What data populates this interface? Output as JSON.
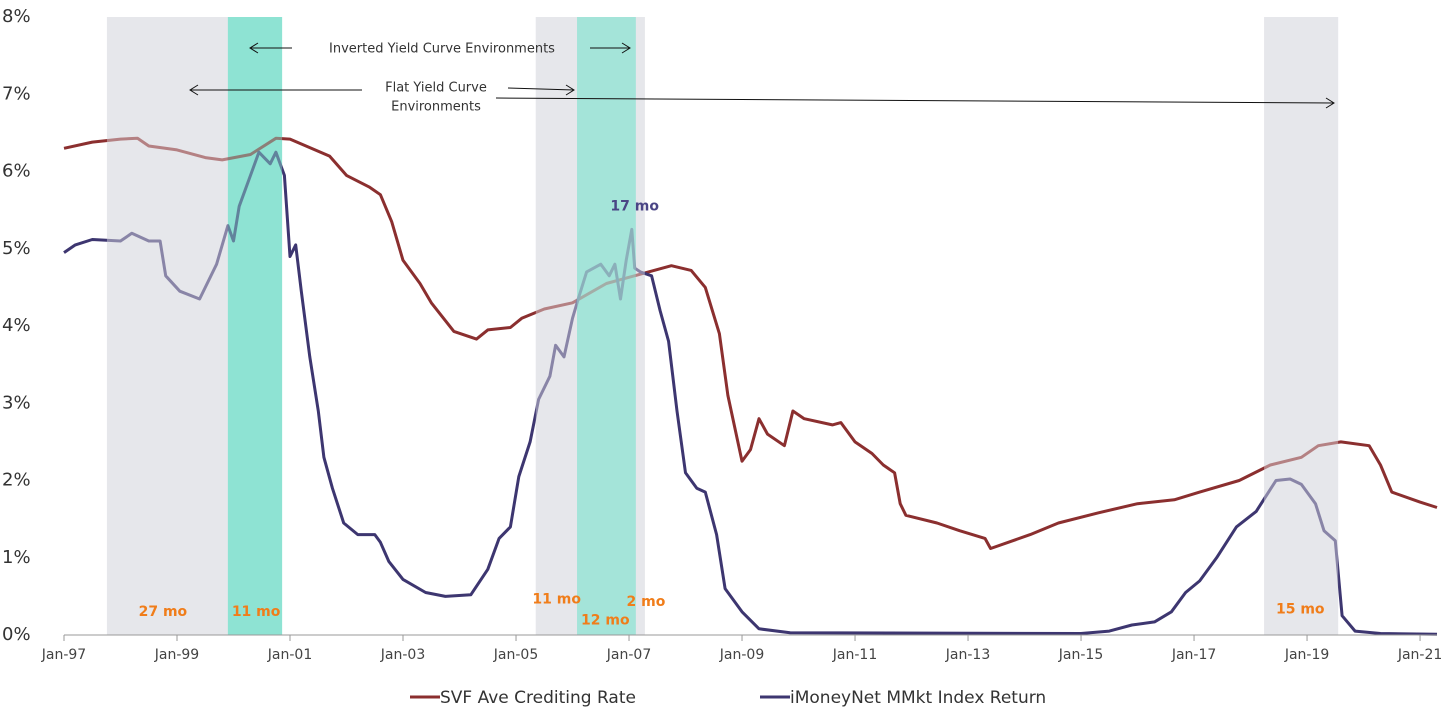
{
  "chart_data": {
    "type": "line",
    "xlim": [
      1997,
      2021.3
    ],
    "xticks": [
      {
        "value": 1997,
        "label": "Jan-97"
      },
      {
        "value": 1999,
        "label": "Jan-99"
      },
      {
        "value": 2001,
        "label": "Jan-01"
      },
      {
        "value": 2003,
        "label": "Jan-03"
      },
      {
        "value": 2005,
        "label": "Jan-05"
      },
      {
        "value": 2007,
        "label": "Jan-07"
      },
      {
        "value": 2009,
        "label": "Jan-09"
      },
      {
        "value": 2011,
        "label": "Jan-11"
      },
      {
        "value": 2013,
        "label": "Jan-13"
      },
      {
        "value": 2015,
        "label": "Jan-15"
      },
      {
        "value": 2017,
        "label": "Jan-17"
      },
      {
        "value": 2019,
        "label": "Jan-19"
      },
      {
        "value": 2021,
        "label": "Jan-21"
      }
    ],
    "ylim": [
      0,
      8
    ],
    "yticks": [
      {
        "value": 0,
        "label": "0%"
      },
      {
        "value": 1,
        "label": "1%"
      },
      {
        "value": 2,
        "label": "2%"
      },
      {
        "value": 3,
        "label": "3%"
      },
      {
        "value": 4,
        "label": "4%"
      },
      {
        "value": 5,
        "label": "5%"
      },
      {
        "value": 6,
        "label": "6%"
      },
      {
        "value": 7,
        "label": "7%"
      },
      {
        "value": 8,
        "label": "8%"
      }
    ],
    "regions": [
      {
        "x": [
          1997.76,
          1999.9
        ],
        "color": "#e6e7eb"
      },
      {
        "x": [
          2005.35,
          2007.28
        ],
        "color": "#e6e7eb"
      },
      {
        "x": [
          2018.24,
          2019.55
        ],
        "color": "#e6e7eb"
      },
      {
        "x": [
          1999.9,
          2000.86
        ],
        "color": "#8fe3d3"
      },
      {
        "x": [
          2006.08,
          2007.12
        ],
        "color": "#8fe3d3"
      }
    ],
    "annotations": [
      {
        "text": "27 mo",
        "x": 1998.75,
        "y": 0.3,
        "color": "#f07d1a"
      },
      {
        "text": "11 mo",
        "x": 2000.4,
        "y": 0.3,
        "color": "#f07d1a"
      },
      {
        "text": "11 mo",
        "x": 2005.72,
        "y": 0.46,
        "color": "#f07d1a"
      },
      {
        "text": "12 mo",
        "x": 2006.58,
        "y": 0.19,
        "color": "#f07d1a"
      },
      {
        "text": "2 mo",
        "x": 2007.3,
        "y": 0.43,
        "color": "#f07d1a"
      },
      {
        "text": "15 mo",
        "x": 2018.88,
        "y": 0.33,
        "color": "#f07d1a"
      },
      {
        "text": "17 mo",
        "x": 2007.1,
        "y": 5.55,
        "color": "#4a4585"
      }
    ],
    "notes": {
      "inverted": "Inverted Yield Curve Environments",
      "flat": [
        "Flat Yield Curve",
        "Environments"
      ]
    },
    "series": [
      {
        "name": "SVF Ave Crediting Rate",
        "color": "#8b2f2f",
        "x": [
          1997.0,
          1997.5,
          1998.0,
          1998.3,
          1998.5,
          1999.0,
          1999.5,
          1999.8,
          2000.3,
          2000.75,
          2001.0,
          2001.7,
          2002.0,
          2002.4,
          2002.6,
          2002.8,
          2003.0,
          2003.3,
          2003.5,
          2003.9,
          2004.3,
          2004.5,
          2004.9,
          2005.1,
          2005.5,
          2006.0,
          2006.6,
          2007.2,
          2007.75,
          2008.1,
          2008.35,
          2008.6,
          2008.75,
          2009.0,
          2009.15,
          2009.3,
          2009.45,
          2009.75,
          2009.9,
          2010.1,
          2010.6,
          2010.75,
          2011.0,
          2011.3,
          2011.5,
          2011.7,
          2011.8,
          2011.9,
          2012.45,
          2012.85,
          2013.3,
          2013.4,
          2014.1,
          2014.6,
          2015.3,
          2016.0,
          2016.65,
          2017.1,
          2017.8,
          2018.35,
          2018.9,
          2019.2,
          2019.6,
          2020.1,
          2020.3,
          2020.5,
          2021.0,
          2021.3
        ],
        "values": [
          6.3,
          6.38,
          6.42,
          6.43,
          6.33,
          6.28,
          6.18,
          6.15,
          6.22,
          6.43,
          6.42,
          6.2,
          5.95,
          5.8,
          5.7,
          5.35,
          4.85,
          4.55,
          4.3,
          3.93,
          3.83,
          3.95,
          3.98,
          4.1,
          4.22,
          4.3,
          4.55,
          4.67,
          4.78,
          4.72,
          4.5,
          3.9,
          3.1,
          2.25,
          2.4,
          2.8,
          2.6,
          2.45,
          2.9,
          2.8,
          2.72,
          2.75,
          2.5,
          2.35,
          2.2,
          2.1,
          1.7,
          1.55,
          1.45,
          1.35,
          1.25,
          1.12,
          1.3,
          1.45,
          1.58,
          1.7,
          1.75,
          1.85,
          2.0,
          2.2,
          2.3,
          2.45,
          2.5,
          2.45,
          2.2,
          1.85,
          1.72,
          1.65
        ]
      },
      {
        "name": "iMoneyNet MMkt Index Return",
        "color": "#3d3670",
        "x": [
          1997.0,
          1997.2,
          1997.5,
          1998.0,
          1998.2,
          1998.5,
          1998.7,
          1998.8,
          1999.05,
          1999.4,
          1999.7,
          1999.9,
          2000.0,
          2000.1,
          2000.3,
          2000.45,
          2000.65,
          2000.75,
          2000.9,
          2001.0,
          2001.1,
          2001.2,
          2001.35,
          2001.5,
          2001.6,
          2001.75,
          2001.95,
          2002.2,
          2002.5,
          2002.6,
          2002.75,
          2003.0,
          2003.4,
          2003.75,
          2004.2,
          2004.5,
          2004.7,
          2004.9,
          2005.05,
          2005.25,
          2005.4,
          2005.6,
          2005.7,
          2005.85,
          2006.0,
          2006.1,
          2006.25,
          2006.5,
          2006.65,
          2006.75,
          2006.85,
          2006.95,
          2007.05,
          2007.1,
          2007.2,
          2007.4,
          2007.55,
          2007.7,
          2007.85,
          2008.0,
          2008.2,
          2008.35,
          2008.55,
          2008.7,
          2009.0,
          2009.3,
          2009.85,
          2015.0,
          2015.5,
          2015.9,
          2016.3,
          2016.6,
          2016.85,
          2017.1,
          2017.4,
          2017.75,
          2018.1,
          2018.45,
          2018.7,
          2018.9,
          2019.15,
          2019.3,
          2019.5,
          2019.62,
          2019.85,
          2020.3,
          2021.3
        ],
        "values": [
          4.95,
          5.05,
          5.12,
          5.1,
          5.2,
          5.1,
          5.1,
          4.65,
          4.45,
          4.35,
          4.8,
          5.3,
          5.1,
          5.55,
          5.95,
          6.25,
          6.1,
          6.25,
          5.95,
          4.9,
          5.05,
          4.45,
          3.6,
          2.9,
          2.3,
          1.9,
          1.45,
          1.3,
          1.3,
          1.2,
          0.95,
          0.72,
          0.55,
          0.5,
          0.52,
          0.85,
          1.25,
          1.4,
          2.05,
          2.5,
          3.05,
          3.35,
          3.75,
          3.6,
          4.1,
          4.35,
          4.7,
          4.8,
          4.65,
          4.8,
          4.35,
          4.85,
          5.25,
          4.75,
          4.7,
          4.65,
          4.2,
          3.8,
          2.9,
          2.1,
          1.9,
          1.85,
          1.3,
          0.6,
          0.3,
          0.08,
          0.03,
          0.02,
          0.05,
          0.13,
          0.17,
          0.3,
          0.55,
          0.7,
          1.0,
          1.4,
          1.6,
          2.0,
          2.02,
          1.95,
          1.7,
          1.35,
          1.22,
          0.25,
          0.05,
          0.02,
          0.01
        ]
      }
    ]
  }
}
